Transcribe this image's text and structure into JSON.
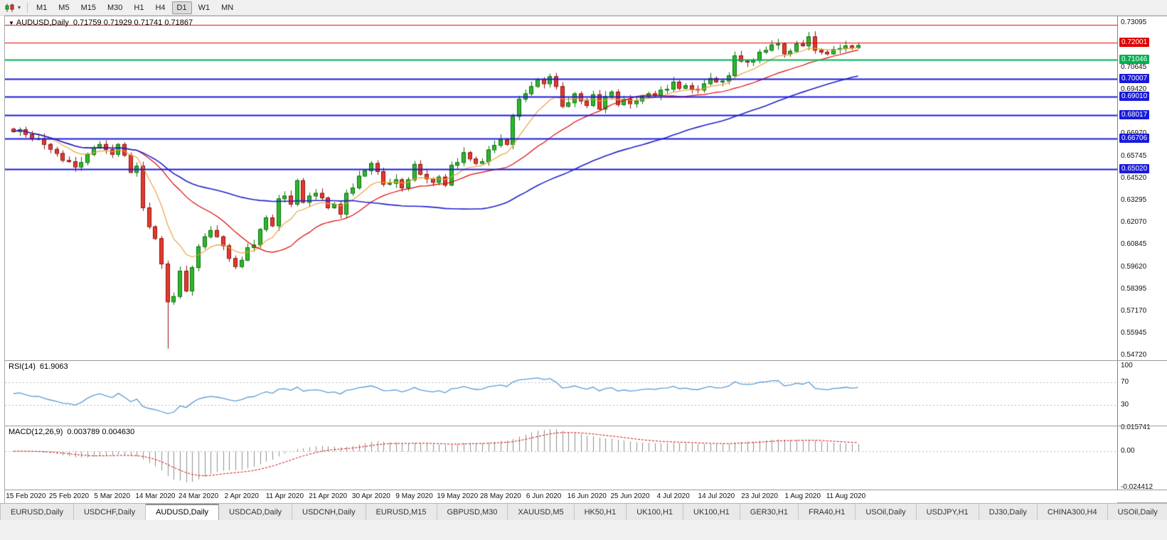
{
  "icons": {
    "collapse_caret": "▼",
    "dropdown_caret": "▾"
  },
  "colors": {
    "up": "#2db82d",
    "up_border": "#0b6e0b",
    "down": "#e23b2e",
    "down_border": "#8f120c",
    "ma_fast": "#e8a33d",
    "ma_mid": "#e00000",
    "ma_slow": "#2020cc",
    "rsi_line": "#5b9bd5",
    "macd_hist": "#8f8f8f",
    "macd_signal": "#d00000",
    "badge_red": "#e00000",
    "badge_green": "#00b050",
    "badge_blue": "#1a1adc"
  },
  "toolbar": {
    "timeframes": [
      "M1",
      "M5",
      "M15",
      "M30",
      "H1",
      "H4",
      "D1",
      "W1",
      "MN"
    ],
    "active": "D1"
  },
  "chart": {
    "symbol_tf": "AUDUSD,Daily",
    "ohlc": "0.71759 0.71929 0.71741 0.71867"
  },
  "price_axis": {
    "ticks": [
      "0.73095",
      "0.70645",
      "0.69420",
      "0.66970",
      "0.65745",
      "0.64520",
      "0.63295",
      "0.62070",
      "0.60845",
      "0.59620",
      "0.58395",
      "0.57170",
      "0.55945",
      "0.54720"
    ]
  },
  "hlines": [
    {
      "price": 0.73,
      "color": "#e00000",
      "width": 1,
      "badge": false,
      "label": ""
    },
    {
      "price": 0.72001,
      "color": "#e00000",
      "width": 1,
      "badge": true,
      "label": "0.72001"
    },
    {
      "price": 0.71046,
      "color": "#00b050",
      "width": 2,
      "badge": true,
      "label": "0.71046"
    },
    {
      "price": 0.70007,
      "color": "#1a1adc",
      "width": 2,
      "badge": true,
      "label": "0.70007"
    },
    {
      "price": 0.6901,
      "color": "#1a1adc",
      "width": 2,
      "badge": true,
      "label": "0.69010"
    },
    {
      "price": 0.68017,
      "color": "#1a1adc",
      "width": 2,
      "badge": true,
      "label": "0.68017"
    },
    {
      "price": 0.66706,
      "color": "#1a1adc",
      "width": 2,
      "badge": true,
      "label": "0.66706"
    },
    {
      "price": 0.6502,
      "color": "#1a1adc",
      "width": 2,
      "badge": true,
      "label": "0.65020"
    }
  ],
  "x_axis": {
    "labels": [
      "15 Feb 2020",
      "25 Feb 2020",
      "5 Mar 2020",
      "14 Mar 2020",
      "24 Mar 2020",
      "2 Apr 2020",
      "11 Apr 2020",
      "21 Apr 2020",
      "30 Apr 2020",
      "9 May 2020",
      "19 May 2020",
      "28 May 2020",
      "6 Jun 2020",
      "16 Jun 2020",
      "25 Jun 2020",
      "4 Jul 2020",
      "14 Jul 2020",
      "23 Jul 2020",
      "1 Aug 2020",
      "11 Aug 2020"
    ]
  },
  "rsi": {
    "name": "RSI(14)",
    "value": "61.9063",
    "levels": [
      {
        "v": 100,
        "label": "100"
      },
      {
        "v": 70,
        "label": "70"
      },
      {
        "v": 30,
        "label": "30"
      }
    ],
    "dashed_levels": [
      70,
      30
    ]
  },
  "macd": {
    "name": "MACD(12,26,9)",
    "values": "0.003789 0.004630",
    "axis": [
      {
        "v": 0.015741,
        "label": "0.015741"
      },
      {
        "v": 0.0,
        "label": "0.00"
      },
      {
        "v": -0.024412,
        "label": "-0.024412"
      }
    ],
    "scale_max": 0.0172,
    "scale_min": -0.0258
  },
  "tabs": {
    "items": [
      "EURUSD,Daily",
      "USDCHF,Daily",
      "AUDUSD,Daily",
      "USDCAD,Daily",
      "USDCNH,Daily",
      "EURUSD,M15",
      "GBPUSD,M30",
      "XAUUSD,M5",
      "HK50,H1",
      "UK100,H1",
      "UK100,H1",
      "GER30,H1",
      "FRA40,H1",
      "USOil,Daily",
      "USDJPY,H1",
      "DJ30,Daily",
      "CHINA300,H4",
      "USOil,Daily"
    ],
    "active_index": 2
  },
  "chart_data": {
    "type": "candlestick",
    "symbol": "AUDUSD",
    "timeframe": "Daily",
    "current_bar": {
      "open": 0.71759,
      "high": 0.71929,
      "low": 0.71741,
      "close": 0.71867
    },
    "rsi_value": 61.9063,
    "macd_values": [
      0.003789,
      0.00463
    ],
    "price_scale": {
      "max": 0.7346,
      "min": 0.5446
    },
    "first_open": 0.6725,
    "closes": [
      0.671,
      0.6722,
      0.6695,
      0.667,
      0.6672,
      0.664,
      0.6613,
      0.659,
      0.6552,
      0.6545,
      0.6515,
      0.654,
      0.6585,
      0.662,
      0.664,
      0.6612,
      0.6585,
      0.664,
      0.658,
      0.6485,
      0.652,
      0.629,
      0.6185,
      0.612,
      0.598,
      0.577,
      0.58,
      0.594,
      0.583,
      0.596,
      0.6075,
      0.613,
      0.6165,
      0.613,
      0.608,
      0.601,
      0.5965,
      0.6,
      0.607,
      0.6085,
      0.617,
      0.6235,
      0.619,
      0.634,
      0.6355,
      0.631,
      0.644,
      0.632,
      0.6355,
      0.637,
      0.6345,
      0.629,
      0.631,
      0.6255,
      0.637,
      0.64,
      0.6465,
      0.6495,
      0.6535,
      0.649,
      0.642,
      0.6425,
      0.6445,
      0.64,
      0.6445,
      0.653,
      0.6475,
      0.645,
      0.643,
      0.646,
      0.6415,
      0.6525,
      0.654,
      0.6595,
      0.656,
      0.6535,
      0.6545,
      0.661,
      0.6635,
      0.6665,
      0.664,
      0.6795,
      0.689,
      0.692,
      0.696,
      0.7,
      0.6975,
      0.7015,
      0.696,
      0.685,
      0.687,
      0.692,
      0.688,
      0.6855,
      0.6915,
      0.6835,
      0.6905,
      0.693,
      0.686,
      0.689,
      0.6865,
      0.688,
      0.6905,
      0.692,
      0.691,
      0.694,
      0.6945,
      0.6985,
      0.695,
      0.6965,
      0.6945,
      0.694,
      0.6975,
      0.7005,
      0.6985,
      0.699,
      0.702,
      0.713,
      0.71,
      0.7095,
      0.7105,
      0.715,
      0.716,
      0.719,
      0.7195,
      0.714,
      0.7155,
      0.7195,
      0.7185,
      0.7235,
      0.716,
      0.715,
      0.714,
      0.7165,
      0.717,
      0.7185,
      0.7175,
      0.71867
    ],
    "overrides": {
      "25": {
        "low": 0.551
      }
    },
    "ma_periods": {
      "fast": 9,
      "mid": 21,
      "slow": 56
    },
    "indicators": {
      "rsi_period": 14,
      "macd": [
        12,
        26,
        9
      ]
    }
  }
}
